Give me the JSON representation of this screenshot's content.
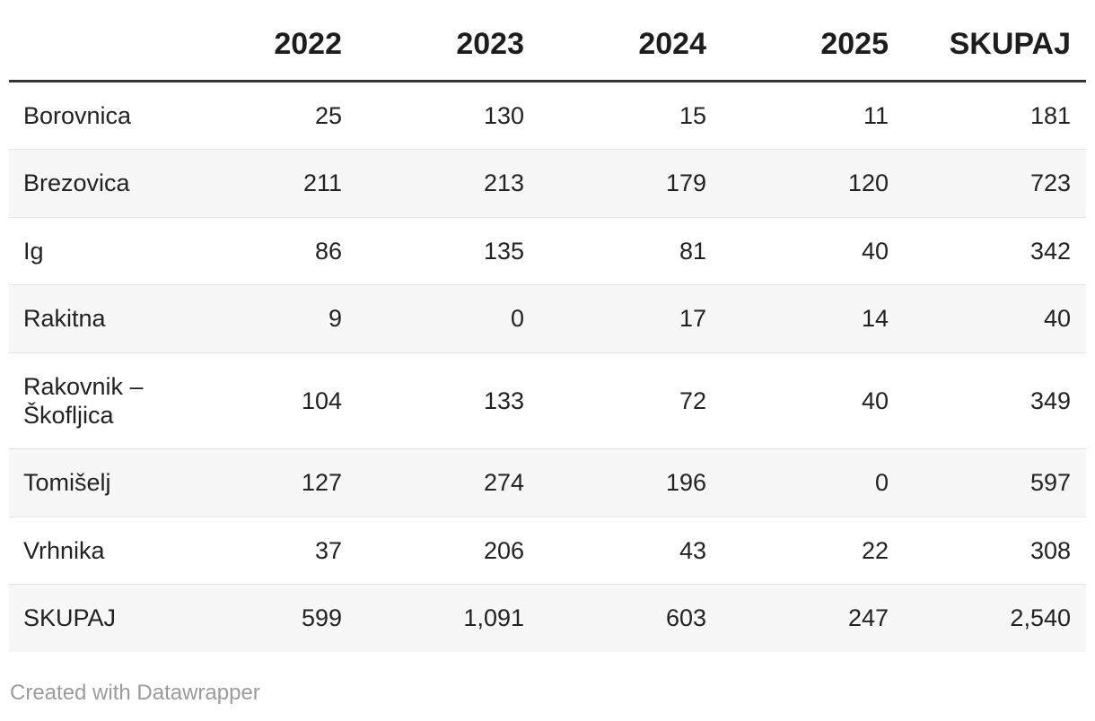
{
  "chart_data": {
    "type": "table",
    "title": "",
    "columns": [
      "",
      "2022",
      "2023",
      "2024",
      "2025",
      "SKUPAJ"
    ],
    "rows": [
      {
        "label": "Borovnica",
        "values": [
          "25",
          "130",
          "15",
          "11",
          "181"
        ]
      },
      {
        "label": "Brezovica",
        "values": [
          "211",
          "213",
          "179",
          "120",
          "723"
        ]
      },
      {
        "label": "Ig",
        "values": [
          "86",
          "135",
          "81",
          "40",
          "342"
        ]
      },
      {
        "label": "Rakitna",
        "values": [
          "9",
          "0",
          "17",
          "14",
          "40"
        ]
      },
      {
        "label": "Rakovnik – Škofljica",
        "values": [
          "104",
          "133",
          "72",
          "40",
          "349"
        ]
      },
      {
        "label": "Tomišelj",
        "values": [
          "127",
          "274",
          "196",
          "0",
          "597"
        ]
      },
      {
        "label": "Vrhnika",
        "values": [
          "37",
          "206",
          "43",
          "22",
          "308"
        ]
      },
      {
        "label": "SKUPAJ",
        "values": [
          "599",
          "1,091",
          "603",
          "247",
          "2,540"
        ]
      }
    ],
    "layout_hints": {
      "zebra_striping": true,
      "numeric_alignment": "right",
      "header_rule": true
    }
  },
  "colors": {
    "header_rule": "#333333",
    "row_stripe": "#f7f7f7",
    "row_border": "#e4e4e4",
    "header_text": "#1d1d1d",
    "body_text": "#222222",
    "credit_text": "#9b9b9b"
  },
  "footer": {
    "credit": "Created with Datawrapper"
  }
}
